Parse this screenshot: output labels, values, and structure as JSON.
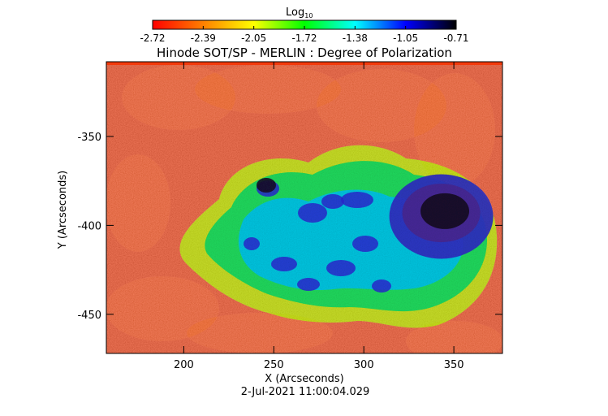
{
  "colorbar": {
    "title_main": "Log",
    "title_sub": "10",
    "ticks": [
      "-2.72",
      "-2.39",
      "-2.05",
      "-1.72",
      "-1.38",
      "-1.05",
      "-0.71"
    ],
    "range": [
      -2.72,
      -0.71
    ],
    "colors": [
      "#ff0000",
      "#ff8000",
      "#ffff00",
      "#00ff00",
      "#00ffff",
      "#0000ff",
      "#000000"
    ]
  },
  "chart_data": {
    "type": "heatmap",
    "title": "Hinode SOT/SP - MERLIN : Degree of Polarization",
    "xlabel": "X (Arcseconds)",
    "ylabel": "Y (Arcseconds)",
    "footer": "2-Jul-2021 11:00:04.029",
    "xlim": [
      157,
      377
    ],
    "ylim": [
      -472,
      -308
    ],
    "x_ticks": [
      200,
      250,
      300,
      350
    ],
    "y_ticks": [
      -350,
      -400,
      -450
    ],
    "colorscale": "rainbow (red = low, black = high)",
    "value_range": [
      -2.72,
      -0.71
    ],
    "features": [
      {
        "type": "sunspot umbra",
        "x": 343,
        "y": -395,
        "value": -0.71
      },
      {
        "type": "plage",
        "x": 290,
        "y": -410,
        "value": -1.3
      }
    ]
  }
}
